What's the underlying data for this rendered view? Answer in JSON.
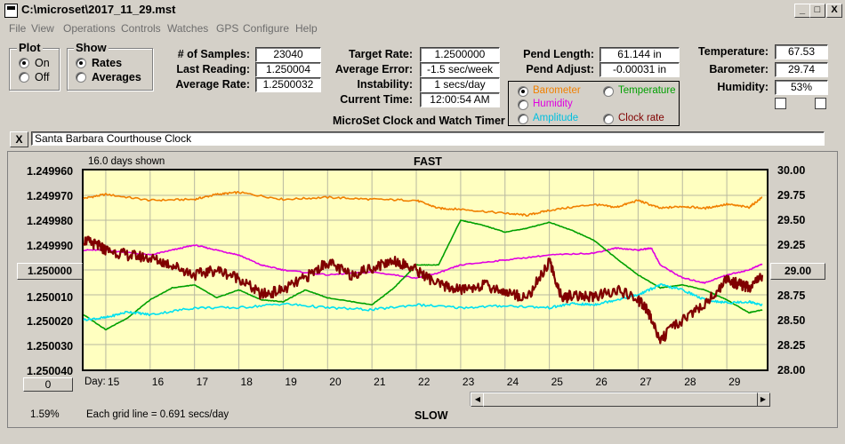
{
  "window": {
    "title": "C:\\microset\\2017_11_29.mst",
    "min": "_",
    "max": "□",
    "close": "X"
  },
  "menu": [
    "File",
    "View",
    "Operations",
    "Controls",
    "Watches",
    "GPS",
    "Configure",
    "Help"
  ],
  "plot_group": {
    "title": "Plot",
    "on": "On",
    "off": "Off",
    "selected": "On"
  },
  "show_group": {
    "title": "Show",
    "rates": "Rates",
    "averages": "Averages",
    "selected": "Rates"
  },
  "stats": {
    "samples_label": "# of Samples:",
    "samples": "23040",
    "last_label": "Last Reading:",
    "last": "1.250004",
    "avg_label": "Average Rate:",
    "avg": "1.2500032"
  },
  "rates": {
    "target_label": "Target Rate:",
    "target": "1.2500000",
    "error_label": "Average Error:",
    "error": "-1.5 sec/week",
    "instab_label": "Instability:",
    "instab": "1 secs/day",
    "time_label": "Current Time:",
    "time": "12:00:54 AM"
  },
  "subtitle": "MicroSet Clock and Watch Timer",
  "pend": {
    "length_label": "Pend Length:",
    "length": "61.144 in",
    "adjust_label": "Pend Adjust:",
    "adjust": "-0.00031 in"
  },
  "env": {
    "temp_label": "Temperature:",
    "temp": "67.53",
    "baro_label": "Barometer:",
    "baro": "29.74",
    "hum_label": "Humidity:",
    "hum": "53%"
  },
  "sensor_select": {
    "options": [
      "Barometer",
      "Temperature",
      "Humidity",
      "Amplitude",
      "Clock rate"
    ],
    "selected": "Barometer",
    "colors": {
      "Barometer": "#f08000",
      "Temperature": "#00a000",
      "Humidity": "#e000e0",
      "Amplitude": "#00e0f0",
      "Clock rate": "#800000"
    }
  },
  "clock_name": "Santa Barbara Courthouse Clock",
  "close_x": "X",
  "plot": {
    "days_shown": "16.0 days shown",
    "fast": "FAST",
    "slow": "SLOW",
    "center_left": "1.250000",
    "center_right": "29.00",
    "zero_btn": "0",
    "percent": "1.59%",
    "grid_note": "Each grid line = 0.691 secs/day",
    "day_label": "Day:"
  },
  "chart_data": {
    "type": "line",
    "title": "",
    "left_axis": [
      "1.249960",
      "1.249970",
      "1.249980",
      "1.249990",
      "1.250000",
      "1.250010",
      "1.250020",
      "1.250030",
      "1.250040"
    ],
    "right_axis": [
      "30.00",
      "29.75",
      "29.50",
      "29.25",
      "29.00",
      "28.75",
      "28.50",
      "28.25",
      "28.00"
    ],
    "x_days": [
      "15",
      "16",
      "17",
      "18",
      "19",
      "20",
      "21",
      "22",
      "23",
      "24",
      "25",
      "26",
      "27",
      "28",
      "29"
    ],
    "xlim": [
      14.5,
      29.9
    ],
    "right_ylim": [
      28.0,
      30.0
    ],
    "left_ylim": [
      1.25004,
      1.24996
    ],
    "series": [
      {
        "name": "Barometer",
        "color": "#f08000",
        "axis": "right",
        "x": [
          14.5,
          15,
          16,
          17,
          17.5,
          18,
          19,
          20,
          21,
          22,
          22.5,
          23,
          24,
          24.5,
          25,
          26,
          26.5,
          27,
          27.5,
          28,
          28.5,
          29,
          29.5,
          29.8
        ],
        "y": [
          29.72,
          29.76,
          29.7,
          29.71,
          29.76,
          29.78,
          29.71,
          29.73,
          29.71,
          29.7,
          29.62,
          29.61,
          29.57,
          29.55,
          29.6,
          29.66,
          29.63,
          29.7,
          29.62,
          29.64,
          29.62,
          29.66,
          29.63,
          29.73
        ]
      },
      {
        "name": "Humidity",
        "color": "#e000e0",
        "axis": "right",
        "x": [
          14.5,
          15,
          16,
          16.5,
          17,
          17.5,
          18,
          18.5,
          19,
          20,
          21,
          22,
          22.5,
          23,
          24,
          25,
          26,
          26.5,
          27,
          27.3,
          27.5,
          28,
          28.5,
          29,
          29.5,
          29.8
        ],
        "y": [
          29.2,
          29.2,
          29.15,
          29.2,
          29.25,
          29.2,
          29.15,
          29.05,
          29.0,
          28.95,
          28.98,
          28.92,
          28.97,
          29.05,
          29.1,
          29.15,
          29.17,
          29.22,
          29.2,
          29.22,
          29.05,
          28.92,
          28.87,
          28.95,
          29.0,
          29.06
        ]
      },
      {
        "name": "Temperature",
        "color": "#00a000",
        "axis": "right",
        "x": [
          14.5,
          15,
          15.5,
          16,
          16.5,
          17,
          17.5,
          18,
          18.5,
          19,
          19.5,
          20,
          21,
          21.5,
          22,
          22.5,
          23,
          23.5,
          24,
          24.5,
          25,
          25.5,
          26,
          26.5,
          27,
          27.5,
          28,
          28.5,
          29,
          29.5,
          29.8
        ],
        "y": [
          28.55,
          28.4,
          28.52,
          28.7,
          28.82,
          28.85,
          28.72,
          28.8,
          28.7,
          28.68,
          28.8,
          28.72,
          28.65,
          28.82,
          29.05,
          29.05,
          29.5,
          29.45,
          29.38,
          29.42,
          29.48,
          29.4,
          29.3,
          29.12,
          28.95,
          28.82,
          28.85,
          28.8,
          28.7,
          28.57,
          28.6
        ]
      },
      {
        "name": "Amplitude",
        "color": "#00e0f0",
        "axis": "right",
        "x": [
          14.5,
          15,
          15.5,
          16,
          17,
          18,
          19,
          20,
          21,
          22,
          23,
          24,
          25,
          25.5,
          26,
          26.5,
          27,
          27.5,
          28,
          28.5,
          29,
          29.5,
          29.8
        ],
        "y": [
          28.5,
          28.52,
          28.58,
          28.55,
          28.62,
          28.62,
          28.66,
          28.62,
          28.6,
          28.65,
          28.62,
          28.64,
          28.62,
          28.66,
          28.65,
          28.7,
          28.75,
          28.85,
          28.8,
          28.7,
          28.67,
          28.68,
          28.65
        ]
      },
      {
        "name": "Clock rate",
        "color": "#800000",
        "axis": "right",
        "x": [
          14.5,
          14.8,
          15,
          15.5,
          16,
          16.5,
          17,
          17.5,
          18,
          18.5,
          19,
          19.5,
          20,
          20.5,
          21,
          21.5,
          22,
          22.5,
          23,
          23.5,
          24,
          24.5,
          25,
          25.3,
          25.5,
          26,
          26.5,
          27,
          27.2,
          27.5,
          28,
          28.5,
          29,
          29.3,
          29.5,
          29.8
        ],
        "y": [
          29.3,
          29.25,
          29.2,
          29.15,
          29.12,
          29.05,
          28.95,
          29.0,
          28.92,
          28.75,
          28.8,
          28.92,
          29.08,
          28.95,
          29.02,
          29.1,
          29.0,
          28.85,
          28.8,
          28.85,
          28.78,
          28.72,
          29.08,
          28.7,
          28.75,
          28.72,
          28.8,
          28.7,
          28.6,
          28.3,
          28.5,
          28.65,
          28.9,
          28.85,
          28.82,
          28.95
        ]
      }
    ]
  }
}
